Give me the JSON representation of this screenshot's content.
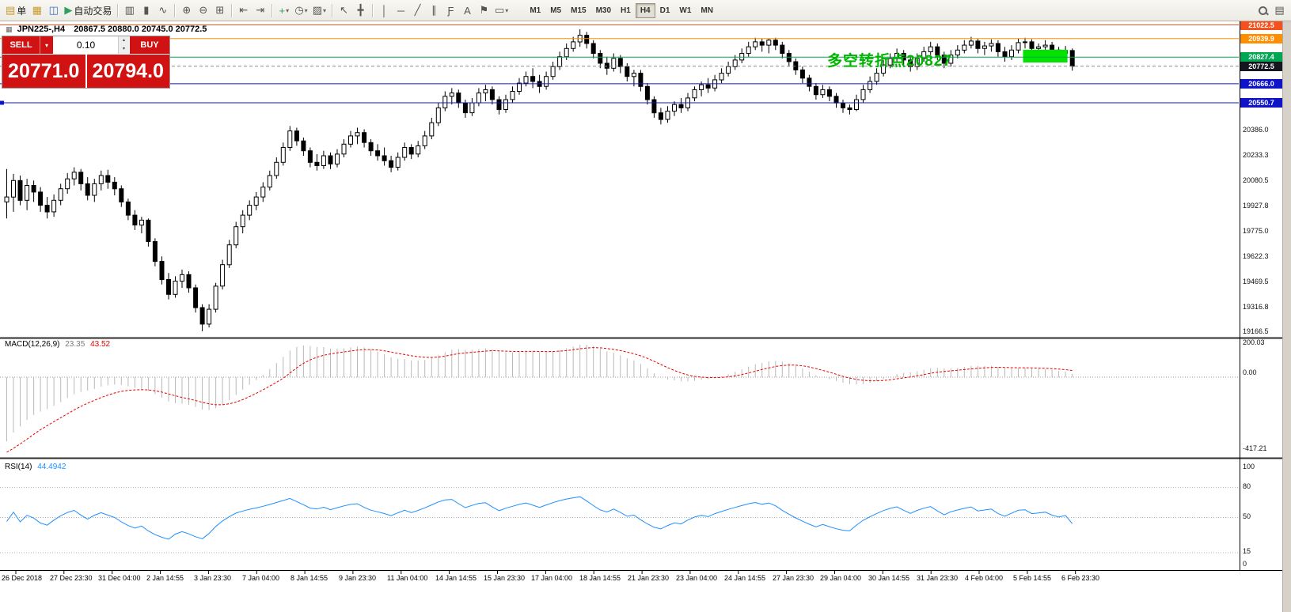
{
  "toolbar": {
    "new_order_label": "单",
    "autotrade_label": "自动交易",
    "timeframes": [
      "M1",
      "M5",
      "M15",
      "M30",
      "H1",
      "H4",
      "D1",
      "W1",
      "MN"
    ],
    "active_timeframe": "H4"
  },
  "icons": {
    "new_order": "▤",
    "chart_windows": "▦",
    "profiles": "◫",
    "autotrade": "▶",
    "bar_chart": "▥",
    "candle_chart": "▮",
    "line_chart": "∿",
    "zoom_in": "⊕",
    "zoom_out": "⊖",
    "tile_windows": "⊞",
    "auto_scroll": "⇤",
    "chart_shift": "⇥",
    "indicators_add": "+",
    "periods": "◷",
    "templates": "▨",
    "cursor": "↖",
    "crosshair": "╋",
    "vertical_line": "│",
    "horizontal_line": "─",
    "trend_line": "╱",
    "channel": "∥",
    "fibonacci": "Ƒ",
    "text": "A",
    "text_label": "⚑",
    "shapes": "▭",
    "dropdown": "▾",
    "spin_up": "▴",
    "spin_down": "▾",
    "data_window": "▤"
  },
  "chart": {
    "title_symbol": "JPN225-,H4",
    "title_ohlc": "20867.5 20880.0 20745.0 20772.5"
  },
  "trade_panel": {
    "sell_label": "SELL",
    "buy_label": "BUY",
    "volume": "0.10",
    "sell_price_main": "20771",
    "sell_price_frac": ".0",
    "buy_price_main": "20794",
    "buy_price_frac": ".0",
    "accent_red": "#d01212"
  },
  "chart_data": {
    "type": "candlestick",
    "symbol": "JPN225-",
    "timeframe": "H4",
    "title": "JPN225-,H4 20867.5 20880.0 20745.0 20772.5",
    "last_ohlc": {
      "open": 20867.5,
      "high": 20880.0,
      "low": 20745.0,
      "close": 20772.5
    },
    "ylim": [
      19100,
      21060
    ],
    "annotation": {
      "text": "多空转折点20827",
      "color": "#00b400",
      "anchor_bar": 122,
      "anchor_price": 20827.4
    },
    "highlight_rect": {
      "bar_start": 151,
      "bar_end": 157,
      "price_top": 20872,
      "price_bottom": 20795,
      "color": "#00e400"
    },
    "levels": [
      {
        "label": "21022.5",
        "price": 21022.5,
        "line_color": "#f4511e",
        "badge_color": "#f4511e",
        "style": "solid"
      },
      {
        "label": "20939.9",
        "price": 20939.9,
        "line_color": "#ff8f00",
        "badge_color": "#ff8f00",
        "style": "solid"
      },
      {
        "label": "20827.4",
        "price": 20827.4,
        "line_color": "#00a651",
        "badge_color": "#00a651",
        "style": "solid"
      },
      {
        "label": "20772.5",
        "price": 20772.5,
        "line_color": "#8a8a8a",
        "badge_color": "#15151f",
        "style": "dashed"
      },
      {
        "label": "20666.0",
        "price": 20666.0,
        "line_color": "#1014c8",
        "badge_color": "#1014c8",
        "style": "solid"
      },
      {
        "label": "20550.7",
        "price": 20550.7,
        "line_color": "#1014c8",
        "badge_color": "#1014c8",
        "style": "solid"
      }
    ],
    "scale_labels": [
      {
        "label": "20386.0",
        "price": 20386.0
      },
      {
        "label": "20233.3",
        "price": 20233.3
      },
      {
        "label": "20080.5",
        "price": 20080.5
      },
      {
        "label": "19927.8",
        "price": 19927.8
      },
      {
        "label": "19775.0",
        "price": 19775.0
      },
      {
        "label": "19622.3",
        "price": 19622.3
      },
      {
        "label": "19469.5",
        "price": 19469.5
      },
      {
        "label": "19316.8",
        "price": 19316.8
      },
      {
        "label": "19166.5",
        "price": 19166.5
      }
    ],
    "time_labels": [
      "26 Dec 2018",
      "27 Dec 23:30",
      "31 Dec 04:00",
      "2 Jan 14:55",
      "3 Jan 23:30",
      "7 Jan 04:00",
      "8 Jan 14:55",
      "9 Jan 23:30",
      "11 Jan 04:00",
      "14 Jan 14:55",
      "15 Jan 23:30",
      "17 Jan 04:00",
      "18 Jan 14:55",
      "21 Jan 23:30",
      "23 Jan 04:00",
      "24 Jan 14:55",
      "27 Jan 23:30",
      "29 Jan 04:00",
      "30 Jan 14:55",
      "31 Jan 23:30",
      "4 Feb 04:00",
      "5 Feb 14:55",
      "6 Feb 23:30"
    ],
    "indicators": [
      {
        "name": "MACD",
        "display": "MACD(12,26,9)",
        "value_main": "23.35",
        "value_signal": "43.52",
        "axis": [
          "200.03",
          "0.00",
          "-417.21"
        ],
        "range": {
          "max": 200.03,
          "min": -417.21
        },
        "color_main": "#b9b9b9",
        "color_signal": "#e60000",
        "params": [
          12,
          26,
          9
        ]
      },
      {
        "name": "RSI",
        "display": "RSI(14)",
        "value": "44.4942",
        "axis": [
          "100",
          "80",
          "50",
          "15",
          "0"
        ],
        "levels": [
          80,
          50,
          15
        ],
        "color": "#1e90ff",
        "params": [
          14
        ]
      }
    ],
    "candles": [
      [
        19950,
        20150,
        19850,
        19980
      ],
      [
        19980,
        20120,
        19890,
        20080
      ],
      [
        20080,
        20110,
        19930,
        19960
      ],
      [
        19960,
        20090,
        19900,
        20050
      ],
      [
        20050,
        20080,
        19950,
        20010
      ],
      [
        20010,
        20040,
        19890,
        19930
      ],
      [
        19930,
        19980,
        19850,
        19890
      ],
      [
        19890,
        19995,
        19860,
        19960
      ],
      [
        19960,
        20060,
        19930,
        20030
      ],
      [
        20030,
        20125,
        20000,
        20090
      ],
      [
        20090,
        20160,
        20050,
        20130
      ],
      [
        20130,
        20150,
        20020,
        20060
      ],
      [
        20060,
        20100,
        19960,
        19990
      ],
      [
        19990,
        20090,
        19950,
        20060
      ],
      [
        20060,
        20140,
        20020,
        20110
      ],
      [
        20110,
        20145,
        20030,
        20070
      ],
      [
        20070,
        20100,
        19990,
        20030
      ],
      [
        20030,
        20050,
        19920,
        19950
      ],
      [
        19950,
        19970,
        19840,
        19870
      ],
      [
        19870,
        19900,
        19780,
        19810
      ],
      [
        19810,
        19860,
        19760,
        19840
      ],
      [
        19840,
        19850,
        19680,
        19710
      ],
      [
        19710,
        19730,
        19560,
        19590
      ],
      [
        19590,
        19620,
        19450,
        19480
      ],
      [
        19480,
        19520,
        19360,
        19390
      ],
      [
        19390,
        19500,
        19370,
        19470
      ],
      [
        19470,
        19540,
        19430,
        19510
      ],
      [
        19510,
        19530,
        19400,
        19430
      ],
      [
        19430,
        19450,
        19280,
        19310
      ],
      [
        19310,
        19330,
        19166.5,
        19210
      ],
      [
        19210,
        19330,
        19190,
        19300
      ],
      [
        19300,
        19460,
        19280,
        19440
      ],
      [
        19440,
        19600,
        19420,
        19570
      ],
      [
        19570,
        19720,
        19550,
        19690
      ],
      [
        19690,
        19830,
        19670,
        19800
      ],
      [
        19800,
        19900,
        19760,
        19870
      ],
      [
        19870,
        19960,
        19840,
        19930
      ],
      [
        19930,
        20010,
        19900,
        19980
      ],
      [
        19980,
        20070,
        19950,
        20040
      ],
      [
        20040,
        20140,
        20020,
        20110
      ],
      [
        20110,
        20220,
        20090,
        20190
      ],
      [
        20190,
        20310,
        20170,
        20280
      ],
      [
        20280,
        20410,
        20260,
        20380
      ],
      [
        20380,
        20400,
        20290,
        20320
      ],
      [
        20320,
        20340,
        20230,
        20260
      ],
      [
        20260,
        20280,
        20160,
        20190
      ],
      [
        20190,
        20240,
        20140,
        20170
      ],
      [
        20170,
        20260,
        20150,
        20230
      ],
      [
        20230,
        20250,
        20150,
        20180
      ],
      [
        20180,
        20270,
        20160,
        20240
      ],
      [
        20240,
        20330,
        20220,
        20300
      ],
      [
        20300,
        20380,
        20280,
        20350
      ],
      [
        20350,
        20400,
        20300,
        20370
      ],
      [
        20370,
        20390,
        20280,
        20310
      ],
      [
        20310,
        20330,
        20230,
        20260
      ],
      [
        20260,
        20300,
        20200,
        20230
      ],
      [
        20230,
        20280,
        20170,
        20200
      ],
      [
        20200,
        20230,
        20130,
        20160
      ],
      [
        20160,
        20250,
        20140,
        20220
      ],
      [
        20220,
        20310,
        20200,
        20280
      ],
      [
        20280,
        20300,
        20210,
        20240
      ],
      [
        20240,
        20320,
        20220,
        20290
      ],
      [
        20290,
        20380,
        20270,
        20350
      ],
      [
        20350,
        20460,
        20330,
        20430
      ],
      [
        20430,
        20550,
        20410,
        20520
      ],
      [
        20520,
        20620,
        20500,
        20590
      ],
      [
        20590,
        20640,
        20540,
        20610
      ],
      [
        20610,
        20630,
        20520,
        20550
      ],
      [
        20550,
        20570,
        20460,
        20490
      ],
      [
        20490,
        20580,
        20470,
        20550
      ],
      [
        20550,
        20640,
        20530,
        20610
      ],
      [
        20610,
        20660,
        20560,
        20630
      ],
      [
        20630,
        20650,
        20540,
        20570
      ],
      [
        20570,
        20590,
        20480,
        20510
      ],
      [
        20510,
        20600,
        20490,
        20570
      ],
      [
        20570,
        20650,
        20550,
        20620
      ],
      [
        20620,
        20700,
        20600,
        20670
      ],
      [
        20670,
        20740,
        20650,
        20710
      ],
      [
        20710,
        20760,
        20640,
        20680
      ],
      [
        20680,
        20720,
        20610,
        20650
      ],
      [
        20650,
        20740,
        20630,
        20710
      ],
      [
        20710,
        20800,
        20690,
        20770
      ],
      [
        20770,
        20860,
        20750,
        20830
      ],
      [
        20830,
        20910,
        20810,
        20880
      ],
      [
        20880,
        20950,
        20860,
        20920
      ],
      [
        20920,
        20995.5,
        20890,
        20960
      ],
      [
        20960,
        20980,
        20880,
        20910
      ],
      [
        20910,
        20930,
        20820,
        20850
      ],
      [
        20850,
        20870,
        20760,
        20790
      ],
      [
        20790,
        20830,
        20720,
        20760
      ],
      [
        20760,
        20850,
        20740,
        20820
      ],
      [
        20820,
        20840,
        20730,
        20770
      ],
      [
        20770,
        20790,
        20680,
        20710
      ],
      [
        20710,
        20750,
        20650,
        20730
      ],
      [
        20730,
        20750,
        20620,
        20650
      ],
      [
        20650,
        20670,
        20540,
        20570
      ],
      [
        20570,
        20590,
        20460,
        20490
      ],
      [
        20490,
        20520,
        20420,
        20450
      ],
      [
        20450,
        20530,
        20430,
        20500
      ],
      [
        20500,
        20560,
        20470,
        20540
      ],
      [
        20540,
        20580,
        20490,
        20520
      ],
      [
        20520,
        20610,
        20500,
        20580
      ],
      [
        20580,
        20650,
        20560,
        20630
      ],
      [
        20630,
        20680,
        20590,
        20660
      ],
      [
        20660,
        20700,
        20610,
        20640
      ],
      [
        20640,
        20720,
        20620,
        20690
      ],
      [
        20690,
        20760,
        20670,
        20730
      ],
      [
        20730,
        20800,
        20710,
        20770
      ],
      [
        20770,
        20840,
        20750,
        20810
      ],
      [
        20810,
        20880,
        20790,
        20850
      ],
      [
        20850,
        20920,
        20830,
        20890
      ],
      [
        20890,
        20945,
        20870,
        20920
      ],
      [
        20920,
        20940,
        20860,
        20900
      ],
      [
        20900,
        20940,
        20850,
        20930
      ],
      [
        20930,
        20945,
        20870,
        20900
      ],
      [
        20900,
        20920,
        20820,
        20850
      ],
      [
        20850,
        20870,
        20770,
        20800
      ],
      [
        20800,
        20820,
        20720,
        20750
      ],
      [
        20750,
        20770,
        20670,
        20700
      ],
      [
        20700,
        20720,
        20620,
        20650
      ],
      [
        20650,
        20670,
        20570,
        20600
      ],
      [
        20600,
        20660,
        20580,
        20630
      ],
      [
        20630,
        20650,
        20560,
        20590
      ],
      [
        20590,
        20610,
        20520,
        20550
      ],
      [
        20550,
        20570,
        20490,
        20520
      ],
      [
        20520,
        20540,
        20480,
        20510
      ],
      [
        20510,
        20600,
        20500,
        20570
      ],
      [
        20570,
        20660,
        20550,
        20630
      ],
      [
        20630,
        20710,
        20610,
        20680
      ],
      [
        20680,
        20760,
        20660,
        20730
      ],
      [
        20730,
        20810,
        20710,
        20780
      ],
      [
        20780,
        20850,
        20760,
        20820
      ],
      [
        20820,
        20880,
        20800,
        20850
      ],
      [
        20850,
        20870,
        20780,
        20810
      ],
      [
        20810,
        20830,
        20740,
        20770
      ],
      [
        20770,
        20850,
        20750,
        20820
      ],
      [
        20820,
        20890,
        20800,
        20860
      ],
      [
        20860,
        20920,
        20840,
        20890
      ],
      [
        20890,
        20910,
        20810,
        20840
      ],
      [
        20840,
        20860,
        20760,
        20790
      ],
      [
        20790,
        20870,
        20770,
        20840
      ],
      [
        20840,
        20900,
        20820,
        20870
      ],
      [
        20870,
        20930,
        20850,
        20900
      ],
      [
        20900,
        20950,
        20880,
        20925
      ],
      [
        20925,
        20940,
        20850,
        20880
      ],
      [
        20880,
        20920,
        20840,
        20895
      ],
      [
        20895,
        20935,
        20860,
        20910
      ],
      [
        20910,
        20930,
        20830,
        20860
      ],
      [
        20860,
        20890,
        20800,
        20830
      ],
      [
        20830,
        20900,
        20810,
        20870
      ],
      [
        20870,
        20940,
        20850,
        20915
      ],
      [
        20915,
        20945,
        20880,
        20920
      ],
      [
        20920,
        20935,
        20850,
        20880
      ],
      [
        20880,
        20910,
        20840,
        20890
      ],
      [
        20890,
        20930,
        20860,
        20900
      ],
      [
        20900,
        20920,
        20840,
        20870
      ],
      [
        20870,
        20890,
        20810,
        20850
      ],
      [
        20850,
        20895,
        20820,
        20867.5
      ],
      [
        20867.5,
        20880,
        20745,
        20772.5
      ]
    ]
  }
}
